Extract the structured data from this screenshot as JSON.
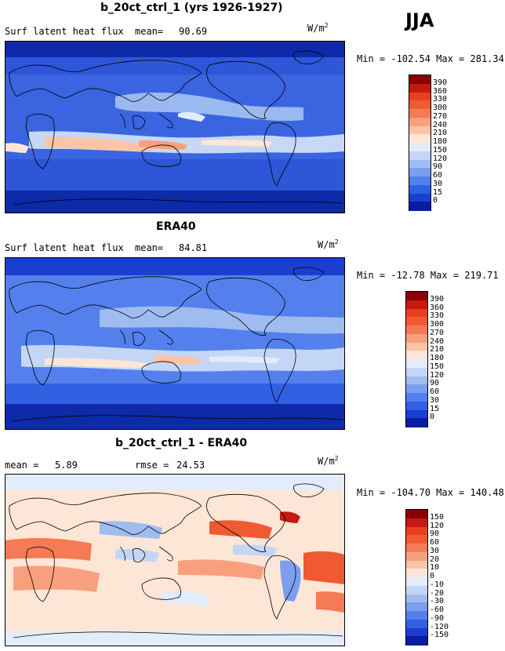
{
  "season": "JJA",
  "unit_base": "W/m",
  "unit_exp": "2",
  "panels": [
    {
      "title": "b_20ct_ctrl_1 (yrs 1926-1927)",
      "left_label": "Surf latent heat flux",
      "stat1_label": "mean=",
      "stat1_value": "90.69",
      "stat2_label": "",
      "stat2_value": "",
      "minmax": "Min = -102.54  Max = 281.34",
      "scale": "absolute"
    },
    {
      "title": "ERA40",
      "left_label": "Surf latent heat flux",
      "stat1_label": "mean=",
      "stat1_value": "84.81",
      "stat2_label": "",
      "stat2_value": "",
      "minmax": "Min = -12.78  Max = 219.71",
      "scale": "absolute"
    },
    {
      "title": "b_20ct_ctrl_1 - ERA40",
      "left_label": "mean =",
      "stat1_label": "",
      "stat1_value": "5.89",
      "stat2_label": "rmse =",
      "stat2_value": "24.53",
      "minmax": "Min = -104.70  Max = 140.48",
      "scale": "difference"
    }
  ],
  "colorbars": {
    "absolute": {
      "labels": [
        "390",
        "360",
        "330",
        "300",
        "270",
        "240",
        "210",
        "180",
        "150",
        "120",
        "90",
        "60",
        "30",
        "15",
        "0"
      ],
      "colors": [
        "#8b0000",
        "#c41a0f",
        "#e8401c",
        "#f05a32",
        "#f47b55",
        "#f8a07e",
        "#fbc4a6",
        "#fde6d6",
        "#e2ecfb",
        "#c4d6f6",
        "#9fbcf1",
        "#7b9ef0",
        "#5380ec",
        "#3060e2",
        "#1a3fd0",
        "#0a1c9e"
      ]
    },
    "difference": {
      "labels": [
        "150",
        "120",
        "90",
        "60",
        "30",
        "20",
        "10",
        "0",
        "-10",
        "-20",
        "-30",
        "-60",
        "-90",
        "-120",
        "-150"
      ],
      "colors": [
        "#8b0000",
        "#c41a0f",
        "#e8401c",
        "#f05a32",
        "#f47b55",
        "#f8a07e",
        "#fbc4a6",
        "#fde6d6",
        "#e2ecfb",
        "#c4d6f6",
        "#9fbcf1",
        "#7b9ef0",
        "#5380ec",
        "#3060e2",
        "#1a3fd0",
        "#0a1c9e"
      ]
    }
  }
}
